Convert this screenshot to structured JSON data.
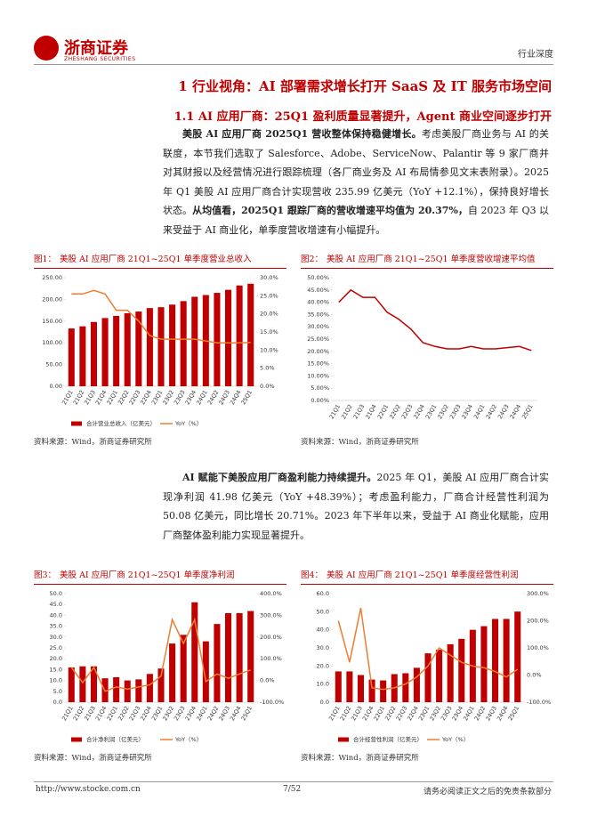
{
  "header": {
    "brand": "浙商证券",
    "brand_en": "ZHESHANG SECURITIES",
    "section": "行业深度"
  },
  "headings": [
    "1 行业视角：AI 部署需求增长打开 SaaS 及 IT 服务市场空间",
    "1.1 AI 应用厂商：25Q1 盈利质量显著提升，Agent 商业空间逐步打开"
  ],
  "paragraphs": [
    [
      {
        "text": "美股 AI 应用厂商 2025Q1 营收整体保持稳健增长。",
        "bold": true
      },
      {
        "text": "考虑美股厂商业务与 AI 的关联度，本节我们选取了 Salesforce、Adobe、ServiceNow、Palantir 等 9 家厂商并对其财报以及经营情况进行跟踪梳理（各厂商业务及 AI 布局情参见文末表附录）。2025 年 Q1 美股 AI 应用厂商合计实现营收 235.99 亿美元（YoY +12.1%），保持良好增长状态。",
        "bold": false
      },
      {
        "text": "从均值看，2025Q1 跟踪厂商的营收增速平均值为 20.37%，",
        "bold": true
      },
      {
        "text": "自 2023 年 Q3 以来受益于 AI 商业化，单季度营收增速有小幅提升。",
        "bold": false
      }
    ],
    [
      {
        "text": "AI 赋能下美股应用厂商盈利能力持续提升。",
        "bold": true
      },
      {
        "text": "2025 年 Q1，美股 AI 应用厂商合计实现净利润 41.98 亿美元（YoY +48.39%）；考虑盈利能力，厂商合计经营性利润为 50.08 亿美元，同比增长 20.71%。2023 年下半年以来，受益于 AI 商业化赋能，应用厂商整体盈利能力实现显著提升。",
        "bold": false
      }
    ]
  ],
  "chart_data": [
    {
      "type": "combo",
      "label": "图1：",
      "title": "美股 AI 应用厂商  21Q1~25Q1 单季度营业总收入",
      "source": "资料来源：Wind，浙商证券研究所",
      "categories": [
        "21Q1",
        "21Q2",
        "21Q3",
        "21Q4",
        "22Q1",
        "22Q2",
        "22Q3",
        "22Q4",
        "23Q1",
        "23Q2",
        "23Q3",
        "23Q4",
        "24Q1",
        "24Q2",
        "24Q3",
        "24Q4",
        "25Q1"
      ],
      "series": [
        {
          "name": "合计营业总收入（亿美元）",
          "kind": "bar",
          "color": "#c00000",
          "values": [
            133,
            138,
            148,
            157,
            162,
            168,
            172,
            180,
            182,
            188,
            196,
            206,
            210,
            215,
            222,
            232,
            235.99
          ]
        },
        {
          "name": "YoY（%）",
          "kind": "line",
          "axis": "y2",
          "color": "#ed7d31",
          "values": [
            25.5,
            25.5,
            26.5,
            25.5,
            21,
            21,
            18,
            14,
            13,
            13,
            13,
            13,
            12.5,
            12,
            12,
            12,
            12.1
          ]
        }
      ],
      "ylim": [
        0,
        250
      ],
      "yticks": [
        {
          "value": 0,
          "label": "0.00"
        },
        {
          "value": 50,
          "label": "50.00"
        },
        {
          "value": 100,
          "label": "100.00"
        },
        {
          "value": 150,
          "label": "150.00"
        },
        {
          "value": 200,
          "label": "200.00"
        },
        {
          "value": 250,
          "label": "250.00"
        }
      ],
      "y2lim": [
        0,
        30
      ],
      "y2ticks": [
        {
          "value": 0,
          "label": "0.0%"
        },
        {
          "value": 5,
          "label": "5.0%"
        },
        {
          "value": 10,
          "label": "10.0%"
        },
        {
          "value": 15,
          "label": "15.0%"
        },
        {
          "value": 20,
          "label": "20.0%"
        },
        {
          "value": 25,
          "label": "25.0%"
        },
        {
          "value": 30,
          "label": "30.0%"
        }
      ],
      "legend": "bottom"
    },
    {
      "type": "line",
      "label": "图2：",
      "title": "美股 AI 应用厂商  21Q1~25Q1 单季度营收增速平均值",
      "source": "资料来源：Wind，浙商证券研究所",
      "categories": [
        "21Q1",
        "21Q2",
        "21Q3",
        "21Q4",
        "22Q1",
        "22Q2",
        "22Q3",
        "22Q4",
        "23Q1",
        "23Q2",
        "23Q3",
        "23Q4",
        "24Q1",
        "24Q2",
        "24Q3",
        "24Q4",
        "25Q1"
      ],
      "series": [
        {
          "kind": "line",
          "color": "#c00000",
          "values": [
            40,
            45,
            42,
            42,
            36,
            33,
            29,
            23.5,
            22,
            21,
            21,
            22,
            21,
            21,
            21.5,
            22,
            20.37
          ]
        }
      ],
      "ylim": [
        0,
        50
      ],
      "yticks": [
        {
          "value": 0,
          "label": "0.00%"
        },
        {
          "value": 5,
          "label": "5.00%"
        },
        {
          "value": 10,
          "label": "10.00%"
        },
        {
          "value": 15,
          "label": "15.00%"
        },
        {
          "value": 20,
          "label": "20.00%"
        },
        {
          "value": 25,
          "label": "25.00%"
        },
        {
          "value": 30,
          "label": "30.00%"
        },
        {
          "value": 35,
          "label": "35.00%"
        },
        {
          "value": 40,
          "label": "40.00%"
        },
        {
          "value": 45,
          "label": "45.00%"
        },
        {
          "value": 50,
          "label": "50.00%"
        }
      ]
    },
    {
      "type": "combo",
      "label": "图3：",
      "title": "美股 AI 应用厂商  21Q1~25Q1 单季度净利润",
      "source": "资料来源：Wind，浙商证券研究所",
      "categories": [
        "21Q1",
        "21Q2",
        "21Q3",
        "21Q4",
        "22Q1",
        "22Q2",
        "22Q3",
        "22Q4",
        "23Q1",
        "23Q2",
        "23Q3",
        "23Q4",
        "24Q1",
        "24Q2",
        "24Q3",
        "24Q4",
        "25Q1"
      ],
      "series": [
        {
          "name": "合计净利润（亿美元）",
          "kind": "bar",
          "color": "#c00000",
          "values": [
            16,
            16.5,
            16.5,
            11,
            11.5,
            10,
            10.5,
            13,
            15.5,
            27,
            31,
            46,
            28,
            36,
            41,
            41,
            41.98
          ]
        },
        {
          "name": "YoY（%）",
          "kind": "line",
          "axis": "y2",
          "color": "#ed7d31",
          "values": [
            60,
            -10,
            60,
            -50,
            -30,
            -40,
            -30,
            -20,
            20,
            280,
            170,
            280,
            -5,
            30,
            10,
            30,
            48.39
          ]
        }
      ],
      "ylim": [
        0,
        50
      ],
      "yticks": [
        {
          "value": 0,
          "label": "0.0"
        },
        {
          "value": 5,
          "label": "5.0"
        },
        {
          "value": 10,
          "label": "10.0"
        },
        {
          "value": 15,
          "label": "15.0"
        },
        {
          "value": 20,
          "label": "20.0"
        },
        {
          "value": 25,
          "label": "25.0"
        },
        {
          "value": 30,
          "label": "30.0"
        },
        {
          "value": 35,
          "label": "35.0"
        },
        {
          "value": 40,
          "label": "40.0"
        },
        {
          "value": 45,
          "label": "45.0"
        },
        {
          "value": 50,
          "label": "50.0"
        }
      ],
      "y2lim": [
        -100,
        400
      ],
      "y2ticks": [
        {
          "value": -100,
          "label": "-100.0%"
        },
        {
          "value": 0,
          "label": "0.0%"
        },
        {
          "value": 100,
          "label": "100.0%"
        },
        {
          "value": 200,
          "label": "200.0%"
        },
        {
          "value": 300,
          "label": "300.0%"
        },
        {
          "value": 400,
          "label": "400.0%"
        }
      ],
      "legend": "bottom"
    },
    {
      "type": "combo",
      "label": "图4：",
      "title": "美股 AI 应用厂商  21Q1~25Q1 单季度经营性利润",
      "source": "资料来源：Wind，浙商证券研究所",
      "categories": [
        "21Q1",
        "21Q2",
        "21Q3",
        "21Q4",
        "22Q1",
        "22Q2",
        "22Q3",
        "22Q4",
        "23Q1",
        "23Q2",
        "23Q3",
        "23Q4",
        "24Q1",
        "24Q2",
        "24Q3",
        "24Q4",
        "25Q1"
      ],
      "series": [
        {
          "name": "合计经营性利润（亿美元）",
          "kind": "bar",
          "color": "#c00000",
          "values": [
            17,
            17,
            15,
            12.5,
            12,
            15.5,
            16,
            19,
            27,
            29,
            32,
            35,
            40,
            42,
            46,
            46,
            50.08
          ]
        },
        {
          "name": "YoY（%）",
          "kind": "line",
          "axis": "y2",
          "color": "#ed7d31",
          "values": [
            200,
            47,
            247,
            -47,
            -53,
            -47,
            -33,
            -7,
            33,
            100,
            73,
            47,
            33,
            27,
            13,
            -7,
            20.71
          ]
        }
      ],
      "ylim": [
        0,
        60
      ],
      "yticks": [
        {
          "value": 0,
          "label": "0.0"
        },
        {
          "value": 10,
          "label": "10.0"
        },
        {
          "value": 20,
          "label": "20.0"
        },
        {
          "value": 30,
          "label": "30.0"
        },
        {
          "value": 40,
          "label": "40.0"
        },
        {
          "value": 50,
          "label": "50.0"
        },
        {
          "value": 60,
          "label": "60.0"
        }
      ],
      "y2lim": [
        -100,
        300
      ],
      "y2ticks": [
        {
          "value": -100,
          "label": "-100.0%"
        },
        {
          "value": 0,
          "label": "0.0%"
        },
        {
          "value": 100,
          "label": "100.0%"
        },
        {
          "value": 200,
          "label": "200.0%"
        },
        {
          "value": 300,
          "label": "300.0%"
        }
      ],
      "legend": "bottom"
    }
  ],
  "footer": {
    "url": "http://www.stocke.com.cn",
    "page": "7/52",
    "disclaimer": "请务必阅读正文之后的免责条款部分"
  }
}
